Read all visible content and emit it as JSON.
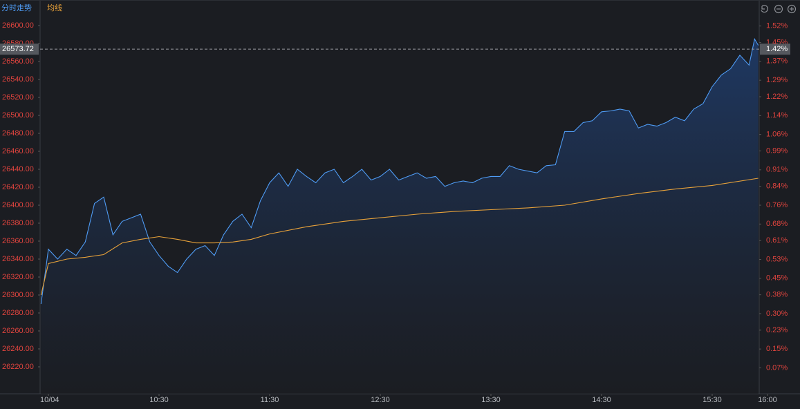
{
  "chart_data": {
    "type": "line",
    "xlim": [
      -4.5,
      385.5
    ],
    "xticks": [
      {
        "value": 0,
        "label": "10/04"
      },
      {
        "value": 60,
        "label": "10:30"
      },
      {
        "value": 120,
        "label": "11:30"
      },
      {
        "value": 180,
        "label": "12:30"
      },
      {
        "value": 240,
        "label": "13:30"
      },
      {
        "value": 300,
        "label": "14:30"
      },
      {
        "value": 360,
        "label": "15:30"
      },
      {
        "value": 390,
        "label": "16:00"
      }
    ],
    "ylim": [
      26190,
      26610
    ],
    "yticks": [
      {
        "value": 26600,
        "label": "26600.00"
      },
      {
        "value": 26580,
        "label": "26580.00"
      },
      {
        "value": 26560,
        "label": "26560.00"
      },
      {
        "value": 26540,
        "label": "26540.00"
      },
      {
        "value": 26520,
        "label": "26520.00"
      },
      {
        "value": 26500,
        "label": "26500.00"
      },
      {
        "value": 26480,
        "label": "26480.00"
      },
      {
        "value": 26460,
        "label": "26460.00"
      },
      {
        "value": 26440,
        "label": "26440.00"
      },
      {
        "value": 26420,
        "label": "26420.00"
      },
      {
        "value": 26400,
        "label": "26400.00"
      },
      {
        "value": 26380,
        "label": "26380.00"
      },
      {
        "value": 26360,
        "label": "26360.00"
      },
      {
        "value": 26340,
        "label": "26340.00"
      },
      {
        "value": 26320,
        "label": "26320.00"
      },
      {
        "value": 26300,
        "label": "26300.00"
      },
      {
        "value": 26280,
        "label": "26280.00"
      },
      {
        "value": 26260,
        "label": "26260.00"
      },
      {
        "value": 26240,
        "label": "26240.00"
      },
      {
        "value": 26220,
        "label": "26220.00"
      }
    ],
    "y2lim": [
      -0.04,
      1.56
    ],
    "y2ticks": [
      {
        "value": 1.52,
        "label": "1.52%"
      },
      {
        "value": 1.45,
        "label": "1.45%"
      },
      {
        "value": 1.37,
        "label": "1.37%"
      },
      {
        "value": 1.29,
        "label": "1.29%"
      },
      {
        "value": 1.22,
        "label": "1.22%"
      },
      {
        "value": 1.14,
        "label": "1.14%"
      },
      {
        "value": 1.06,
        "label": "1.06%"
      },
      {
        "value": 0.99,
        "label": "0.99%"
      },
      {
        "value": 0.91,
        "label": "0.91%"
      },
      {
        "value": 0.84,
        "label": "0.84%"
      },
      {
        "value": 0.76,
        "label": "0.76%"
      },
      {
        "value": 0.68,
        "label": "0.68%"
      },
      {
        "value": 0.61,
        "label": "0.61%"
      },
      {
        "value": 0.53,
        "label": "0.53%"
      },
      {
        "value": 0.45,
        "label": "0.45%"
      },
      {
        "value": 0.38,
        "label": "0.38%"
      },
      {
        "value": 0.3,
        "label": "0.30%"
      },
      {
        "value": 0.23,
        "label": "0.23%"
      },
      {
        "value": 0.15,
        "label": "0.15%"
      },
      {
        "value": 0.07,
        "label": "0.07%"
      }
    ],
    "reference_line": {
      "value": 26573.72,
      "y2_value": {
        "value": 1.42,
        "label": "1.42%"
      }
    },
    "series": [
      {
        "name": "分时走势",
        "color": "#4f9cf5",
        "x": [
          -4,
          0,
          5,
          10,
          15,
          20,
          25,
          30,
          35,
          40,
          45,
          50,
          55,
          60,
          65,
          70,
          75,
          80,
          85,
          90,
          95,
          100,
          105,
          110,
          115,
          120,
          125,
          130,
          135,
          140,
          145,
          150,
          155,
          160,
          165,
          170,
          175,
          180,
          185,
          190,
          195,
          200,
          205,
          210,
          215,
          220,
          225,
          230,
          235,
          240,
          245,
          250,
          255,
          260,
          265,
          270,
          275,
          280,
          285,
          290,
          295,
          300,
          305,
          310,
          315,
          320,
          325,
          330,
          335,
          340,
          345,
          350,
          355,
          360,
          365,
          370,
          375,
          380,
          383,
          385
        ],
        "values": [
          26290,
          26351,
          26340,
          26351,
          26344,
          26359,
          26402,
          26409,
          26367,
          26382,
          26386,
          26390,
          26359,
          26344,
          26332,
          26325,
          26340,
          26351,
          26355,
          26344,
          26367,
          26382,
          26390,
          26375,
          26405,
          26425,
          26436,
          26421,
          26440,
          26432,
          26425,
          26436,
          26440,
          26425,
          26432,
          26440,
          26428,
          26432,
          26440,
          26428,
          26432,
          26436,
          26430,
          26432,
          26421,
          26425,
          26427,
          26425,
          26430,
          26432,
          26432,
          26444,
          26440,
          26438,
          26436,
          26444,
          26445,
          26482,
          26482,
          26492,
          26494,
          26504,
          26505,
          26507,
          26505,
          26486,
          26490,
          26488,
          26492,
          26498,
          26494,
          26507,
          26513,
          26532,
          26545,
          26552,
          26567,
          26556,
          26585,
          26578
        ]
      },
      {
        "name": "均线",
        "color": "#e8a23a",
        "x": [
          -4,
          0,
          10,
          20,
          30,
          40,
          50,
          60,
          70,
          80,
          90,
          100,
          110,
          120,
          140,
          160,
          180,
          200,
          220,
          240,
          260,
          280,
          300,
          320,
          340,
          360,
          385
        ],
        "values": [
          26300,
          26335,
          26340,
          26342,
          26345,
          26358,
          26362,
          26365,
          26362,
          26358,
          26358,
          26359,
          26362,
          26368,
          26376,
          26382,
          26386,
          26390,
          26393,
          26395,
          26397,
          26400,
          26407,
          26413,
          26418,
          26422,
          26430
        ]
      }
    ]
  }
}
